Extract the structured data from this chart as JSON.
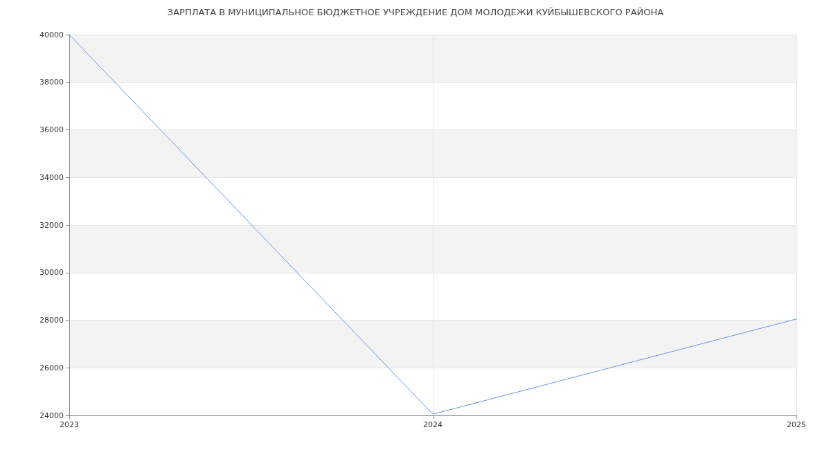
{
  "chart_data": {
    "type": "line",
    "title": "ЗАРПЛАТА В МУНИЦИПАЛЬНОЕ БЮДЖЕТНОЕ УЧРЕЖДЕНИЕ ДОМ МОЛОДЕЖИ КУЙБЫШЕВСКОГО РАЙОНА",
    "x": [
      2023,
      2024,
      2025
    ],
    "series": [
      {
        "color": "#6495ed",
        "values": [
          40000,
          24050,
          28050
        ]
      }
    ],
    "xlim": [
      2023,
      2025
    ],
    "xticks": [
      2023,
      2024,
      2025
    ],
    "ylim": [
      24000,
      40000
    ],
    "yticks": [
      24000,
      26000,
      28000,
      30000,
      32000,
      34000,
      36000,
      38000,
      40000
    ],
    "grid": true,
    "marker": "none",
    "line_style": "solid"
  }
}
